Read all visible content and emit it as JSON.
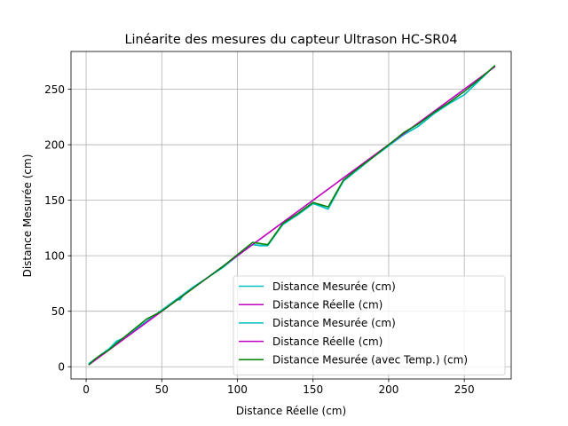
{
  "chart_data": {
    "type": "line",
    "title": "Linéarite des mesures du capteur Ultrason HC-SR04",
    "xlabel": "Distance Réelle (cm)",
    "ylabel": "Distance Mesurée (cm)",
    "xlim": [
      -10,
      281
    ],
    "ylim": [
      -11,
      284
    ],
    "xticks": [
      0,
      50,
      100,
      150,
      200,
      250
    ],
    "yticks": [
      0,
      50,
      100,
      150,
      200,
      250
    ],
    "xtick_labels": [
      "0",
      "50",
      "100",
      "150",
      "200",
      "250"
    ],
    "ytick_labels": [
      "0",
      "50",
      "100",
      "150",
      "200",
      "250"
    ],
    "grid": true,
    "legend_position": "lower-right",
    "series": [
      {
        "name": "Distance Mesurée (cm)",
        "color": "#00bfbf",
        "x": [
          2,
          5,
          10,
          15,
          20,
          25,
          30,
          35,
          40,
          45,
          50,
          55,
          60,
          62,
          65,
          70,
          80,
          90,
          100,
          105,
          110,
          115,
          120,
          125,
          130,
          140,
          150,
          155,
          160,
          165,
          170,
          180,
          190,
          200,
          210,
          220,
          230,
          240,
          250,
          260,
          270
        ],
        "y": [
          3,
          6,
          11,
          16,
          23,
          26,
          31,
          36,
          41,
          46,
          51,
          56,
          61,
          60,
          66,
          71,
          80,
          89,
          100,
          106,
          110,
          109,
          109,
          119,
          128,
          137,
          147,
          145,
          142,
          156,
          167,
          178,
          189,
          199,
          209,
          217,
          228,
          237,
          245,
          258,
          271
        ]
      },
      {
        "name": "Distance Réelle (cm)",
        "color": "#bf00bf",
        "x": [
          2,
          270
        ],
        "y": [
          2,
          270
        ]
      },
      {
        "name": "Distance Mesurée (cm)",
        "color": "#00bfbf",
        "x": [
          2,
          5,
          10,
          15,
          20,
          25,
          30,
          35,
          40,
          45,
          50,
          55,
          60,
          65,
          70,
          80,
          90,
          100,
          110,
          120,
          130,
          140,
          150,
          160,
          170,
          180,
          190,
          200,
          210,
          220,
          230,
          240,
          250,
          260,
          270
        ],
        "y": [
          3,
          6,
          11,
          16,
          22,
          26,
          31,
          36,
          41,
          46,
          51,
          56,
          61,
          66,
          71,
          80,
          89,
          100,
          110,
          109,
          128,
          137,
          147,
          142,
          167,
          178,
          189,
          199,
          209,
          217,
          228,
          237,
          245,
          258,
          271
        ]
      },
      {
        "name": "Distance Réelle (cm)",
        "color": "#bf00bf",
        "x": [
          2,
          270
        ],
        "y": [
          2,
          270
        ]
      },
      {
        "name": "Distance Mesurée (avec Temp.) (cm)",
        "color": "#008000",
        "x": [
          2,
          5,
          10,
          15,
          20,
          30,
          40,
          50,
          60,
          70,
          80,
          90,
          100,
          110,
          120,
          130,
          140,
          150,
          160,
          170,
          180,
          190,
          200,
          210,
          220,
          230,
          240,
          250,
          260,
          270
        ],
        "y": [
          2,
          6,
          11,
          15,
          21,
          32,
          43,
          50,
          60,
          70,
          80,
          90,
          101,
          112,
          110,
          129,
          138,
          148,
          144,
          168,
          179,
          189,
          200,
          211,
          219,
          229,
          238,
          248,
          259,
          271
        ]
      }
    ]
  }
}
